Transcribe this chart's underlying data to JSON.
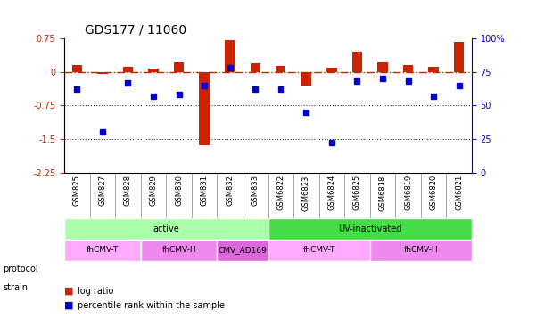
{
  "title": "GDS177 / 11060",
  "samples": [
    "GSM825",
    "GSM827",
    "GSM828",
    "GSM829",
    "GSM830",
    "GSM831",
    "GSM832",
    "GSM833",
    "GSM6822",
    "GSM6823",
    "GSM6824",
    "GSM6825",
    "GSM6818",
    "GSM6819",
    "GSM6820",
    "GSM6821"
  ],
  "log_ratio": [
    0.15,
    -0.05,
    0.12,
    0.07,
    0.2,
    -0.03,
    0.7,
    0.18,
    0.13,
    -0.3,
    0.1,
    0.45,
    0.2,
    0.15,
    0.12,
    0.67
  ],
  "log_ratio_neg": [
    0.0,
    0.0,
    0.0,
    0.0,
    0.0,
    -1.65,
    0.0,
    0.0,
    0.0,
    0.0,
    0.0,
    0.0,
    0.0,
    0.0,
    0.0,
    0.0
  ],
  "pct_rank": [
    62,
    30,
    67,
    57,
    58,
    65,
    78,
    62,
    62,
    45,
    22,
    68,
    70,
    68,
    57,
    65
  ],
  "ylim_left": [
    -2.25,
    0.75
  ],
  "ylim_right": [
    0,
    100
  ],
  "hlines": [
    -0.75,
    -1.5
  ],
  "protocol": [
    {
      "label": "active",
      "start": 0,
      "end": 8,
      "color": "#aaffaa"
    },
    {
      "label": "UV-inactivated",
      "start": 8,
      "end": 16,
      "color": "#44dd44"
    }
  ],
  "strain": [
    {
      "label": "fhCMV-T",
      "start": 0,
      "end": 3,
      "color": "#ffaaff"
    },
    {
      "label": "fhCMV-H",
      "start": 3,
      "end": 6,
      "color": "#ee88ee"
    },
    {
      "label": "CMV_AD169",
      "start": 6,
      "end": 8,
      "color": "#dd66dd"
    },
    {
      "label": "fhCMV-T",
      "start": 8,
      "end": 12,
      "color": "#ffaaff"
    },
    {
      "label": "fhCMV-H",
      "start": 12,
      "end": 16,
      "color": "#ee88ee"
    }
  ],
  "bar_color": "#cc2200",
  "dot_color": "#0000cc",
  "zero_line_color": "#cc2200",
  "hline_color": "#333333",
  "left_axis_color": "#cc2200",
  "right_axis_color": "#0000cc"
}
